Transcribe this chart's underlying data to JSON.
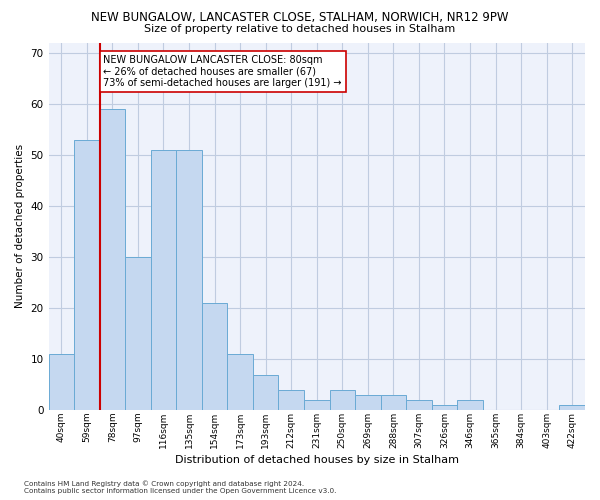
{
  "title": "NEW BUNGALOW, LANCASTER CLOSE, STALHAM, NORWICH, NR12 9PW",
  "subtitle": "Size of property relative to detached houses in Stalham",
  "xlabel": "Distribution of detached houses by size in Stalham",
  "ylabel": "Number of detached properties",
  "categories": [
    "40sqm",
    "59sqm",
    "78sqm",
    "97sqm",
    "116sqm",
    "135sqm",
    "154sqm",
    "173sqm",
    "193sqm",
    "212sqm",
    "231sqm",
    "250sqm",
    "269sqm",
    "288sqm",
    "307sqm",
    "326sqm",
    "346sqm",
    "365sqm",
    "384sqm",
    "403sqm",
    "422sqm"
  ],
  "values": [
    11,
    53,
    59,
    30,
    51,
    51,
    21,
    11,
    7,
    4,
    2,
    4,
    3,
    3,
    2,
    1,
    2,
    0,
    0,
    0,
    1
  ],
  "bar_color": "#c5d8f0",
  "bar_edge_color": "#6aaad4",
  "red_line_x": 2,
  "red_line_color": "#cc0000",
  "ylim": [
    0,
    72
  ],
  "yticks": [
    0,
    10,
    20,
    30,
    40,
    50,
    60,
    70
  ],
  "annotation_text": "NEW BUNGALOW LANCASTER CLOSE: 80sqm\n← 26% of detached houses are smaller (67)\n73% of semi-detached houses are larger (191) →",
  "annotation_box_color": "#ffffff",
  "annotation_box_edge": "#cc0000",
  "footer_text": "Contains HM Land Registry data © Crown copyright and database right 2024.\nContains public sector information licensed under the Open Government Licence v3.0.",
  "bg_color": "#eef2fb",
  "grid_color": "#c0cce0"
}
